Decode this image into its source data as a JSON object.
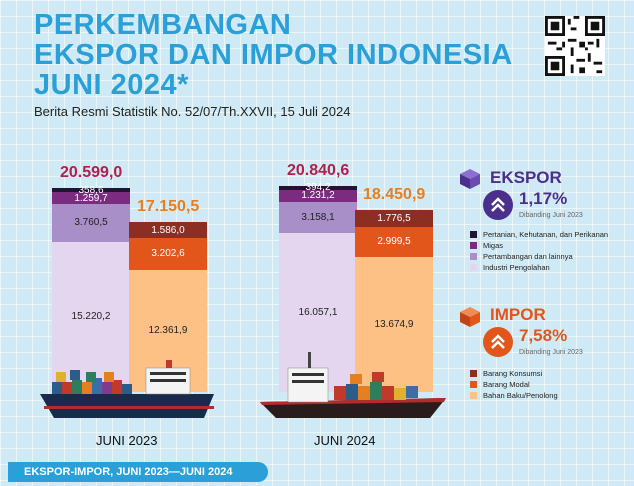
{
  "header": {
    "title_line1": "PERKEMBANGAN",
    "title_line2": "EKSPOR DAN IMPOR INDONESIA",
    "title_line3": "JUNI 2024*",
    "subtitle": "Berita Resmi Statistik No. 52/07/Th.XXVII, 15 Juli 2024"
  },
  "colors": {
    "accent": "#2a9fd8",
    "ekspor_dark": "#1e1433",
    "ekspor_migas": "#7b2c80",
    "ekspor_tambang": "#a98fc8",
    "ekspor_industri": "#e4d6ee",
    "impor_konsumsi": "#8c2f22",
    "impor_modal": "#e2561c",
    "impor_baku": "#fdc186",
    "total_ekspor": "#b0204e",
    "total_impor": "#e67e22",
    "ekspor_legend": "#4a2f8c",
    "impor_legend": "#e2561c"
  },
  "chart_data": {
    "type": "bar",
    "stacked": true,
    "categories": [
      "JUNI 2023",
      "JUNI 2024"
    ],
    "groups": [
      {
        "name": "EKSPOR",
        "totals": [
          "20.599,0",
          "20.840,6"
        ],
        "total_values": [
          20599.0,
          20840.6
        ],
        "series": [
          {
            "name": "Industri Pengolahan",
            "values": [
              15220.2,
              16057.1
            ],
            "labels": [
              "15.220,2",
              "16.057,1"
            ]
          },
          {
            "name": "Pertambangan dan lainnya",
            "values": [
              3760.5,
              3158.1
            ],
            "labels": [
              "3.760,5",
              "3.158,1"
            ]
          },
          {
            "name": "Migas",
            "values": [
              1259.7,
              1231.2
            ],
            "labels": [
              "1.259,7",
              "1.231,2"
            ]
          },
          {
            "name": "Pertanian, Kehutanan, dan Perikanan",
            "values": [
              358.6,
              394.2
            ],
            "labels": [
              "358,6",
              "394,2"
            ]
          }
        ]
      },
      {
        "name": "IMPOR",
        "totals": [
          "17.150,5",
          "18.450,9"
        ],
        "total_values": [
          17150.5,
          18450.9
        ],
        "series": [
          {
            "name": "Bahan Baku/Penolong",
            "values": [
              12361.9,
              13674.9
            ],
            "labels": [
              "12.361,9",
              "13.674,9"
            ]
          },
          {
            "name": "Barang Modal",
            "values": [
              3202.6,
              2999.5
            ],
            "labels": [
              "3.202,6",
              "2.999,5"
            ]
          },
          {
            "name": "Barang Konsumsi",
            "values": [
              1586.0,
              1776.5
            ],
            "labels": [
              "1.586,0",
              "1.776,5"
            ]
          }
        ]
      }
    ]
  },
  "legend": {
    "ekspor": {
      "title": "EKSPOR",
      "pct": "1,17%",
      "cmp": "Dibanding Juni 2023",
      "items": [
        "Pertanian, Kehutanan, dan Perikanan",
        "Migas",
        "Pertambangan dan lainnya",
        "Industri Pengolahan"
      ]
    },
    "impor": {
      "title": "IMPOR",
      "pct": "7,58%",
      "cmp": "Dibanding Juni 2023",
      "items": [
        "Barang Konsumsi",
        "Barang Modal",
        "Bahan Baku/Penolong"
      ]
    }
  },
  "footer": {
    "text": "EKSPOR-IMPOR, JUNI 2023—JUNI 2024"
  }
}
